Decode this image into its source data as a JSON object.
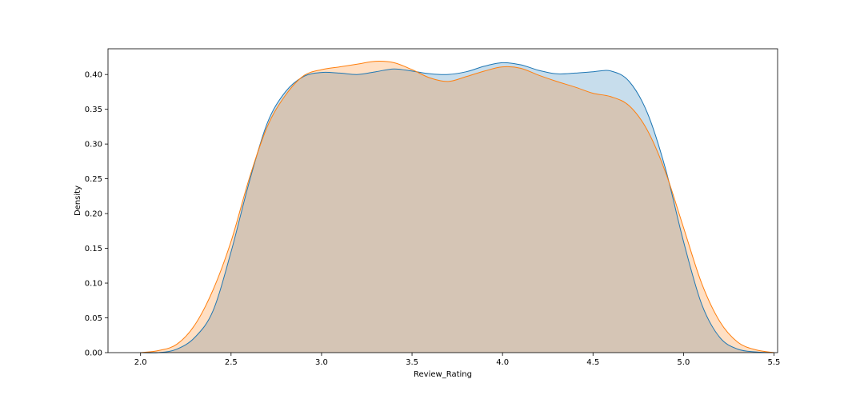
{
  "chart_data": {
    "type": "area",
    "title": "",
    "xlabel": "Review_Rating",
    "ylabel": "Density",
    "xlim": [
      1.82,
      5.52
    ],
    "ylim": [
      0,
      0.437
    ],
    "grid": false,
    "xticks": [
      {
        "value": 2.0,
        "label": "2.0"
      },
      {
        "value": 2.5,
        "label": "2.5"
      },
      {
        "value": 3.0,
        "label": "3.0"
      },
      {
        "value": 3.5,
        "label": "3.5"
      },
      {
        "value": 4.0,
        "label": "4.0"
      },
      {
        "value": 4.5,
        "label": "4.5"
      },
      {
        "value": 5.0,
        "label": "5.0"
      },
      {
        "value": 5.5,
        "label": "5.5"
      }
    ],
    "yticks": [
      {
        "value": 0.0,
        "label": "0.00"
      },
      {
        "value": 0.05,
        "label": "0.05"
      },
      {
        "value": 0.1,
        "label": "0.10"
      },
      {
        "value": 0.15,
        "label": "0.15"
      },
      {
        "value": 0.2,
        "label": "0.20"
      },
      {
        "value": 0.25,
        "label": "0.25"
      },
      {
        "value": 0.3,
        "label": "0.30"
      },
      {
        "value": 0.35,
        "label": "0.35"
      },
      {
        "value": 0.4,
        "label": "0.40"
      }
    ],
    "series": [
      {
        "color": "#1f77b4",
        "fill": "#1f77b4",
        "points": [
          [
            2.0,
            0.0
          ],
          [
            2.1,
            0.0
          ],
          [
            2.2,
            0.005
          ],
          [
            2.3,
            0.022
          ],
          [
            2.4,
            0.06
          ],
          [
            2.5,
            0.145
          ],
          [
            2.6,
            0.245
          ],
          [
            2.7,
            0.33
          ],
          [
            2.8,
            0.375
          ],
          [
            2.9,
            0.397
          ],
          [
            3.0,
            0.403
          ],
          [
            3.1,
            0.402
          ],
          [
            3.2,
            0.4
          ],
          [
            3.3,
            0.404
          ],
          [
            3.4,
            0.408
          ],
          [
            3.5,
            0.405
          ],
          [
            3.6,
            0.401
          ],
          [
            3.7,
            0.4
          ],
          [
            3.8,
            0.404
          ],
          [
            3.9,
            0.412
          ],
          [
            4.0,
            0.417
          ],
          [
            4.1,
            0.414
          ],
          [
            4.2,
            0.406
          ],
          [
            4.3,
            0.401
          ],
          [
            4.4,
            0.402
          ],
          [
            4.5,
            0.404
          ],
          [
            4.6,
            0.405
          ],
          [
            4.7,
            0.39
          ],
          [
            4.8,
            0.345
          ],
          [
            4.9,
            0.265
          ],
          [
            5.0,
            0.16
          ],
          [
            5.1,
            0.07
          ],
          [
            5.2,
            0.022
          ],
          [
            5.3,
            0.005
          ],
          [
            5.4,
            0.001
          ],
          [
            5.5,
            0.0
          ]
        ]
      },
      {
        "color": "#ff7f0e",
        "fill": "#ff7f0e",
        "points": [
          [
            2.0,
            0.0
          ],
          [
            2.1,
            0.003
          ],
          [
            2.2,
            0.012
          ],
          [
            2.3,
            0.04
          ],
          [
            2.4,
            0.09
          ],
          [
            2.5,
            0.16
          ],
          [
            2.6,
            0.25
          ],
          [
            2.7,
            0.325
          ],
          [
            2.8,
            0.37
          ],
          [
            2.9,
            0.398
          ],
          [
            3.0,
            0.407
          ],
          [
            3.1,
            0.411
          ],
          [
            3.2,
            0.415
          ],
          [
            3.3,
            0.419
          ],
          [
            3.4,
            0.417
          ],
          [
            3.5,
            0.407
          ],
          [
            3.6,
            0.395
          ],
          [
            3.7,
            0.39
          ],
          [
            3.8,
            0.397
          ],
          [
            3.9,
            0.405
          ],
          [
            4.0,
            0.411
          ],
          [
            4.1,
            0.409
          ],
          [
            4.2,
            0.399
          ],
          [
            4.3,
            0.39
          ],
          [
            4.4,
            0.382
          ],
          [
            4.5,
            0.373
          ],
          [
            4.6,
            0.368
          ],
          [
            4.7,
            0.355
          ],
          [
            4.8,
            0.32
          ],
          [
            4.9,
            0.26
          ],
          [
            5.0,
            0.18
          ],
          [
            5.1,
            0.1
          ],
          [
            5.2,
            0.045
          ],
          [
            5.3,
            0.015
          ],
          [
            5.4,
            0.004
          ],
          [
            5.5,
            0.0
          ]
        ]
      }
    ]
  }
}
